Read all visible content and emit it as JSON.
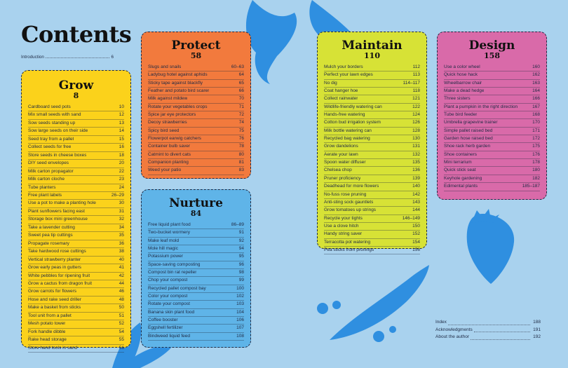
{
  "page": {
    "title": "Contents"
  },
  "intro": {
    "label": "Introduction",
    "page": "6"
  },
  "sections": {
    "grow": {
      "title": "Grow",
      "page": "8",
      "items": [
        [
          "Cardboard seed pots",
          "10"
        ],
        [
          "Mix small seeds with sand",
          "12"
        ],
        [
          "Sow seeds standing up",
          "13"
        ],
        [
          "Sow large seeds on their side",
          "14"
        ],
        [
          "Seed tray from a pallet",
          "15"
        ],
        [
          "Collect seeds for free",
          "16"
        ],
        [
          "Store seeds in cheese boxes",
          "18"
        ],
        [
          "DIY seed envelopes",
          "20"
        ],
        [
          "Milk carton propagator",
          "22"
        ],
        [
          "Milk carton cloche",
          "23"
        ],
        [
          "Tube planters",
          "24"
        ],
        [
          "Free plant labels",
          "26–29"
        ],
        [
          "Use a pot to make a planting hole",
          "30"
        ],
        [
          "Plant sunflowers facing east",
          "31"
        ],
        [
          "Storage box mini greenhouse",
          "32"
        ],
        [
          "Take a lavender cutting",
          "34"
        ],
        [
          "Sweet pea tip cuttings",
          "35"
        ],
        [
          "Propagate rosemary",
          "36"
        ],
        [
          "Take hardwood rose cuttings",
          "38"
        ],
        [
          "Vertical strawberry planter",
          "40"
        ],
        [
          "Grow early peas in gutters",
          "41"
        ],
        [
          "White pebbles for ripening fruit",
          "42"
        ],
        [
          "Grow a cactus from dragon fruit",
          "44"
        ],
        [
          "Grow carrots for flowers",
          "46"
        ],
        [
          "Hose and rake seed driller",
          "48"
        ],
        [
          "Make a basket from sticks",
          "50"
        ],
        [
          "Tool unit from a pallet",
          "51"
        ],
        [
          "Mesh potato tower",
          "52"
        ],
        [
          "Fork handle dibble",
          "54"
        ],
        [
          "Rake head storage",
          "55"
        ],
        [
          "Store hand tools in sand",
          "56"
        ]
      ]
    },
    "protect": {
      "title": "Protect",
      "page": "58",
      "items": [
        [
          "Slugs and snails",
          "60–63"
        ],
        [
          "Ladybug hotel against aphids",
          "64"
        ],
        [
          "Sticky tape against blackfly",
          "65"
        ],
        [
          "Feather and potato bird scarer",
          "66"
        ],
        [
          "Milk against mildew",
          "70"
        ],
        [
          "Rotate your vegetables crops",
          "71"
        ],
        [
          "Spice jar eye protectors",
          "72"
        ],
        [
          "Decoy strawberries",
          "74"
        ],
        [
          "Spicy bird seed",
          "75"
        ],
        [
          "Flowerpot earwig catchers",
          "76"
        ],
        [
          "Container bulb saver",
          "78"
        ],
        [
          "Catmint to divert cats",
          "80"
        ],
        [
          "Companion planting",
          "81"
        ],
        [
          "Weed your patio",
          "83"
        ]
      ]
    },
    "nurture": {
      "title": "Nurture",
      "page": "84",
      "items": [
        [
          "Free liquid plant food",
          "86–89"
        ],
        [
          "Two-bucket wormery",
          "91"
        ],
        [
          "Make leaf mold",
          "92"
        ],
        [
          "Mole hill magic",
          "94"
        ],
        [
          "Potassium power",
          "95"
        ],
        [
          "Space-saving composting",
          "96"
        ],
        [
          "Compost bin rat repeller",
          "98"
        ],
        [
          "Chop your compost",
          "99"
        ],
        [
          "Recycled pallet compost bay",
          "100"
        ],
        [
          "Color your compost",
          "102"
        ],
        [
          "Rotate your compost",
          "103"
        ],
        [
          "Banana skin plant food",
          "104"
        ],
        [
          "Coffee booster",
          "106"
        ],
        [
          "Eggshell fertilizer",
          "107"
        ],
        [
          "Bindweed liquid feed",
          "108"
        ]
      ]
    },
    "maintain": {
      "title": "Maintain",
      "page": "110",
      "items": [
        [
          "Mulch your borders",
          "112"
        ],
        [
          "Perfect your lawn edges",
          "113"
        ],
        [
          "No dig",
          "114–117"
        ],
        [
          "Coat hanger hoe",
          "118"
        ],
        [
          "Collect rainwater",
          "121"
        ],
        [
          "Wildlife-friendly watering can",
          "122"
        ],
        [
          "Hands-free watering",
          "124"
        ],
        [
          "Cotton bud irrigation system",
          "126"
        ],
        [
          "Milk bottle watering can",
          "128"
        ],
        [
          "Recycled bag watering",
          "130"
        ],
        [
          "Grow dandelions",
          "131"
        ],
        [
          "Aerate your lawn",
          "132"
        ],
        [
          "Spoon water diffuser",
          "135"
        ],
        [
          "Chelsea chop",
          "136"
        ],
        [
          "Pruner proficiency",
          "139"
        ],
        [
          "Deadhead for more flowers",
          "140"
        ],
        [
          "No-fuss rose pruning",
          "142"
        ],
        [
          "Anti-sting sock gauntlets",
          "143"
        ],
        [
          "Grow tomatoes up strings",
          "144"
        ],
        [
          "Recycle your tights",
          "146–149"
        ],
        [
          "Use a clove hitch",
          "150"
        ],
        [
          "Handy string saver",
          "152"
        ],
        [
          "Terracotta pot watering",
          "154"
        ],
        [
          "Pea sticks from prunings",
          "156"
        ]
      ]
    },
    "design": {
      "title": "Design",
      "page": "158",
      "items": [
        [
          "Use a color wheel",
          "160"
        ],
        [
          "Quick hose hack",
          "162"
        ],
        [
          "Wheelbarrow chair",
          "163"
        ],
        [
          "Make a dead hedge",
          "164"
        ],
        [
          "Three sisters",
          "166"
        ],
        [
          "Plant a pumpkin in the right direction",
          "167"
        ],
        [
          "Tube bird feeder",
          "168"
        ],
        [
          "Umbrella grapevine trainer",
          "170"
        ],
        [
          "Simple pallet raised bed",
          "171"
        ],
        [
          "Garden hose raised bed",
          "172"
        ],
        [
          "Shoe rack herb garden",
          "175"
        ],
        [
          "Shoe containers",
          "176"
        ],
        [
          "Mini terrarium",
          "178"
        ],
        [
          "Quick stick seat",
          "180"
        ],
        [
          "Keyhole gardening",
          "182"
        ],
        [
          "Edimental plants",
          "185–187"
        ]
      ]
    }
  },
  "back_matter": [
    [
      "Index",
      "188"
    ],
    [
      "Acknowledgments",
      "191"
    ],
    [
      "About the author",
      "192"
    ]
  ],
  "colors": {
    "background": "#a9d2ee",
    "grow": "#fbd21b",
    "protect": "#f27a3d",
    "nurture": "#5fb4e8",
    "maintain": "#d7e236",
    "design": "#d96aa9",
    "silhouette": "#2f8fe0"
  }
}
